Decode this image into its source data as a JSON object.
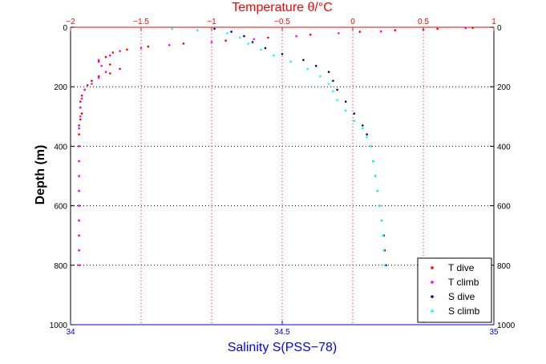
{
  "chart_data": {
    "type": "scatter",
    "title": "Temperature θ/°C",
    "xlabel": "Salinity S(PSS−78)",
    "ylabel": "Depth (m)",
    "grid": true,
    "legend_position": "bottom-right",
    "x_top": {
      "label": "Temperature θ/°C",
      "lim": [
        -2,
        1
      ],
      "ticks": [
        -2,
        -1.5,
        -1,
        -0.5,
        0,
        0.5,
        1
      ],
      "tick_labels": [
        "−2",
        "−1.5",
        "−1",
        "−0.5",
        "0",
        "0.5",
        "1"
      ],
      "color": "#ff0000"
    },
    "x_bottom": {
      "label": "Salinity S(PSS−78)",
      "lim": [
        34,
        35
      ],
      "ticks": [
        34,
        34.5,
        35
      ],
      "tick_labels": [
        "34",
        "34.5",
        "35"
      ],
      "color": "#0000ff"
    },
    "y": {
      "label": "Depth (m)",
      "lim": [
        0,
        1000
      ],
      "reversed": true,
      "ticks": [
        0,
        200,
        400,
        600,
        800,
        1000
      ],
      "tick_labels": [
        "0",
        "200",
        "400",
        "600",
        "800",
        "1000"
      ]
    },
    "series": [
      {
        "name": "T dive",
        "axis": "temperature",
        "color": "#ff0000",
        "points": [
          [
            0.85,
            2
          ],
          [
            0.6,
            5
          ],
          [
            0.3,
            10
          ],
          [
            0.05,
            15
          ],
          [
            -0.3,
            25
          ],
          [
            -0.6,
            35
          ],
          [
            -0.9,
            45
          ],
          [
            -1.2,
            55
          ],
          [
            -1.45,
            65
          ],
          [
            -1.6,
            75
          ],
          [
            -1.7,
            85
          ],
          [
            -1.75,
            100
          ],
          [
            -1.8,
            115
          ],
          [
            -1.72,
            125
          ],
          [
            -1.65,
            140
          ],
          [
            -1.72,
            155
          ],
          [
            -1.8,
            165
          ],
          [
            -1.85,
            180
          ],
          [
            -1.88,
            195
          ],
          [
            -1.9,
            210
          ],
          [
            -1.92,
            230
          ],
          [
            -1.93,
            250
          ],
          [
            -1.93,
            270
          ],
          [
            -1.92,
            290
          ],
          [
            -1.93,
            310
          ],
          [
            -1.94,
            330
          ],
          [
            -1.94,
            360
          ],
          [
            -1.94,
            400
          ],
          [
            -1.94,
            450
          ],
          [
            -1.94,
            500
          ],
          [
            -1.94,
            550
          ],
          [
            -1.94,
            600
          ],
          [
            -1.94,
            650
          ],
          [
            -1.94,
            700
          ],
          [
            -1.94,
            750
          ],
          [
            -1.94,
            800
          ]
        ]
      },
      {
        "name": "T climb",
        "axis": "temperature",
        "color": "#ff00ff",
        "points": [
          [
            0.8,
            3
          ],
          [
            0.5,
            8
          ],
          [
            0.2,
            14
          ],
          [
            -0.1,
            20
          ],
          [
            -0.4,
            30
          ],
          [
            -0.7,
            40
          ],
          [
            -1.0,
            50
          ],
          [
            -1.3,
            60
          ],
          [
            -1.5,
            70
          ],
          [
            -1.65,
            80
          ],
          [
            -1.72,
            95
          ],
          [
            -1.8,
            110
          ],
          [
            -1.78,
            130
          ],
          [
            -1.75,
            150
          ],
          [
            -1.8,
            170
          ],
          [
            -1.85,
            190
          ],
          [
            -1.9,
            210
          ],
          [
            -1.92,
            240
          ],
          [
            -1.93,
            270
          ],
          [
            -1.93,
            300
          ],
          [
            -1.94,
            340
          ],
          [
            -1.94,
            400
          ],
          [
            -1.94,
            450
          ],
          [
            -1.94,
            500
          ],
          [
            -1.94,
            550
          ],
          [
            -1.94,
            600
          ],
          [
            -1.94,
            650
          ],
          [
            -1.94,
            700
          ],
          [
            -1.94,
            750
          ],
          [
            -1.94,
            800
          ]
        ]
      },
      {
        "name": "S dive",
        "axis": "salinity",
        "color": "#00008b",
        "points": [
          [
            34.34,
            5
          ],
          [
            34.38,
            15
          ],
          [
            34.41,
            30
          ],
          [
            34.43,
            50
          ],
          [
            34.46,
            70
          ],
          [
            34.5,
            90
          ],
          [
            34.55,
            110
          ],
          [
            34.58,
            130
          ],
          [
            34.61,
            150
          ],
          [
            34.62,
            180
          ],
          [
            34.63,
            210
          ],
          [
            34.65,
            250
          ],
          [
            34.67,
            290
          ],
          [
            34.69,
            330
          ],
          [
            34.7,
            360
          ],
          [
            34.71,
            400
          ],
          [
            34.715,
            450
          ],
          [
            34.72,
            500
          ],
          [
            34.725,
            550
          ],
          [
            34.73,
            600
          ],
          [
            34.735,
            650
          ],
          [
            34.74,
            700
          ],
          [
            34.742,
            750
          ],
          [
            34.745,
            800
          ]
        ]
      },
      {
        "name": "S climb",
        "axis": "salinity",
        "color": "#00ffff",
        "points": [
          [
            34.24,
            5
          ],
          [
            34.3,
            10
          ],
          [
            34.37,
            20
          ],
          [
            34.4,
            35
          ],
          [
            34.42,
            55
          ],
          [
            34.45,
            75
          ],
          [
            34.48,
            95
          ],
          [
            34.52,
            115
          ],
          [
            34.56,
            140
          ],
          [
            34.59,
            165
          ],
          [
            34.61,
            190
          ],
          [
            34.62,
            215
          ],
          [
            34.63,
            245
          ],
          [
            34.65,
            280
          ],
          [
            34.67,
            315
          ],
          [
            34.69,
            340
          ],
          [
            34.7,
            370
          ],
          [
            34.71,
            400
          ],
          [
            34.715,
            450
          ],
          [
            34.72,
            500
          ],
          [
            34.725,
            550
          ],
          [
            34.73,
            600
          ],
          [
            34.735,
            650
          ],
          [
            34.738,
            700
          ],
          [
            34.74,
            750
          ],
          [
            34.742,
            800
          ]
        ]
      }
    ]
  }
}
